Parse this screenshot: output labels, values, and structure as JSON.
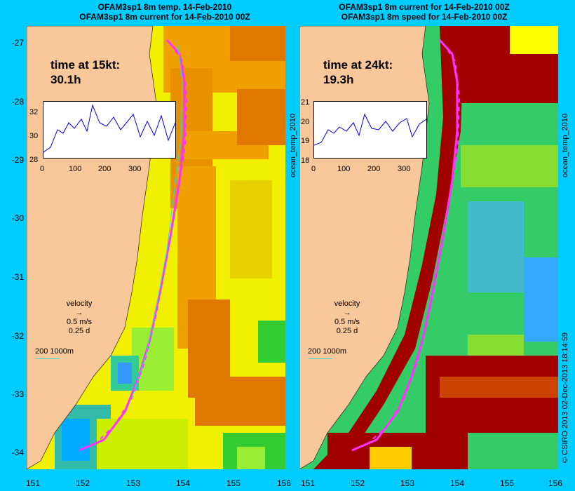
{
  "left_panel": {
    "title1": "OFAM3sp1 8m temp. 14-Feb-2010",
    "title2": "OFAM3sp1 8m current for 14-Feb-2010 00Z",
    "time_label": "time at 15kt:",
    "time_value": "30.1h",
    "inset_yticks": [
      "32",
      "30",
      "28"
    ],
    "inset_xticks": [
      "0",
      "100",
      "200",
      "300"
    ],
    "side_label": "ocean_temp_2010"
  },
  "right_panel": {
    "title1": "OFAM3sp1 8m current for 14-Feb-2010 00Z",
    "title2": "OFAM3sp1 8m speed for 14-Feb-2010 00Z",
    "time_label": "time at 24kt:",
    "time_value": "19.3h",
    "inset_yticks": [
      "21",
      "20",
      "19",
      "18"
    ],
    "inset_xticks": [
      "0",
      "100",
      "200",
      "300"
    ],
    "side_label": "ocean_temp_2010"
  },
  "legend": {
    "velocity": "velocity",
    "speed": "0.5 m/s",
    "duration": "0.25 d",
    "depth": "200  1000m"
  },
  "y_axis": [
    "-27",
    "-28",
    "-29",
    "-30",
    "-31",
    "-32",
    "-33",
    "-34"
  ],
  "x_axis_left": [
    "151",
    "152",
    "153",
    "154",
    "155",
    "156"
  ],
  "x_axis_right": [
    "151",
    "152",
    "153",
    "154",
    "155",
    "156"
  ],
  "credit": "© CSIRO 2013   02-Dec-2013 18:14:59",
  "colors": {
    "background": "#00ccff",
    "land": "#f8c89a",
    "route": "#ff33ff",
    "warm": "#e07800",
    "yellow": "#f0f000",
    "green": "#33cc33",
    "darkred": "#a00000"
  }
}
